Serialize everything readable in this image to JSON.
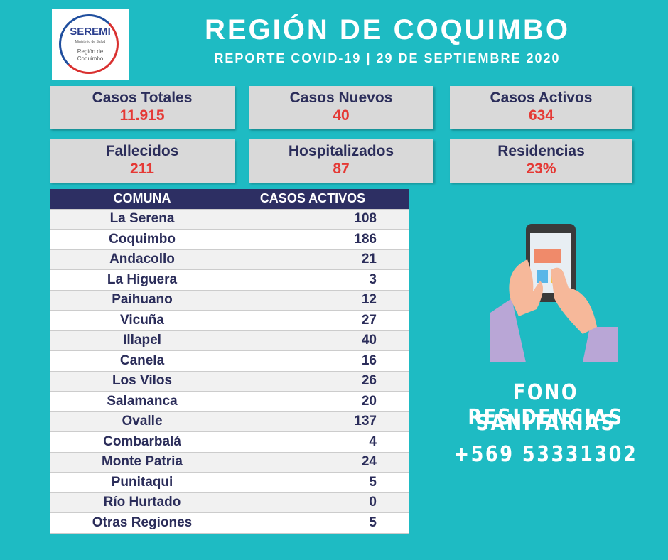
{
  "header": {
    "logo": {
      "title": "SEREMI",
      "ministry": "Ministerio de Salud",
      "region": "Región de Coquimbo"
    },
    "title": "REGIÓN DE COQUIMBO",
    "subtitle": "REPORTE COVID-19 | 29 DE SEPTIEMBRE 2020"
  },
  "stats": [
    {
      "label": "Casos Totales",
      "value": "11.915"
    },
    {
      "label": "Casos Nuevos",
      "value": "40"
    },
    {
      "label": "Casos Activos",
      "value": "634"
    },
    {
      "label": "Fallecidos",
      "value": "211"
    },
    {
      "label": "Hospitalizados",
      "value": "87"
    },
    {
      "label": "Residencias",
      "value": "23%"
    }
  ],
  "table": {
    "columns": [
      "COMUNA",
      "CASOS ACTIVOS"
    ],
    "rows": [
      [
        "La Serena",
        "108"
      ],
      [
        "Coquimbo",
        "186"
      ],
      [
        "Andacollo",
        "21"
      ],
      [
        "La Higuera",
        "3"
      ],
      [
        "Paihuano",
        "12"
      ],
      [
        "Vicuña",
        "27"
      ],
      [
        "Illapel",
        "40"
      ],
      [
        "Canela",
        "16"
      ],
      [
        "Los Vilos",
        "26"
      ],
      [
        "Salamanca",
        "20"
      ],
      [
        "Ovalle",
        "137"
      ],
      [
        "Combarbalá",
        "4"
      ],
      [
        "Monte Patria",
        "24"
      ],
      [
        "Punitaqui",
        "5"
      ],
      [
        "Río Hurtado",
        "0"
      ],
      [
        "Otras Regiones",
        "5"
      ]
    ]
  },
  "contact": {
    "lines": [
      "FONO RESIDENCIAS",
      "SANITARIAS",
      "+569 53331302"
    ]
  }
}
